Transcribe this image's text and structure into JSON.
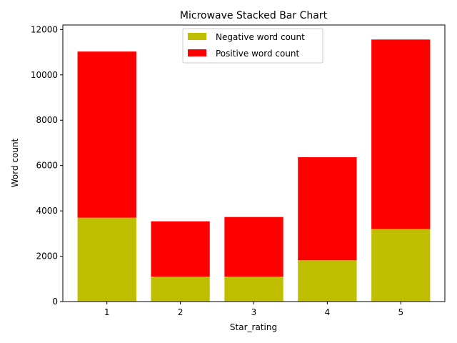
{
  "chart_data": {
    "type": "bar",
    "stacked": true,
    "title": "Microwave Stacked Bar Chart",
    "xlabel": "Star_rating",
    "ylabel": "Word count",
    "categories": [
      "1",
      "2",
      "3",
      "4",
      "5"
    ],
    "series": [
      {
        "name": "Negative word count",
        "color": "#bfbf00",
        "values": [
          3700,
          1100,
          1100,
          1820,
          3200
        ]
      },
      {
        "name": "Positive word count",
        "color": "#ff0000",
        "values": [
          7330,
          2440,
          2630,
          4550,
          8360
        ]
      }
    ],
    "ylim": [
      0,
      12200
    ],
    "yticks": [
      0,
      2000,
      4000,
      6000,
      8000,
      10000,
      12000
    ],
    "grid": false,
    "legend_position": "top-center"
  }
}
